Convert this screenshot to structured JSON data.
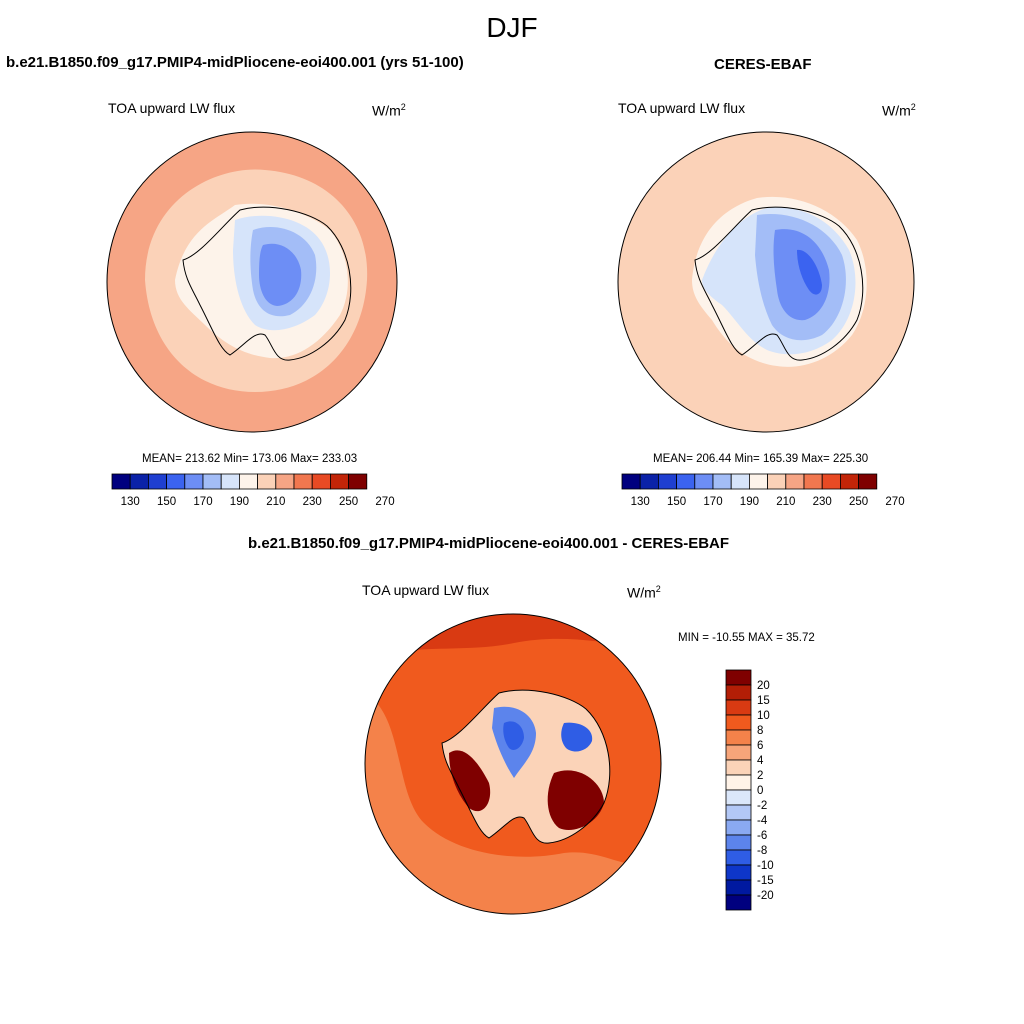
{
  "figure": {
    "season": "DJF",
    "model_title": "b.e21.B1850.f09_g17.PMIP4-midPliocene-eoi400.001 (yrs 51-100)",
    "obs_title": "CERES-EBAF",
    "diff_title": "b.e21.B1850.f09_g17.PMIP4-midPliocene-eoi400.001 - CERES-EBAF"
  },
  "panels": {
    "model": {
      "variable": "TOA upward LW flux",
      "units_base": "W/m",
      "units_exp": "2",
      "stats": "MEAN= 213.62  Min= 173.06  Max= 233.03"
    },
    "obs": {
      "variable": "TOA upward LW flux",
      "units_base": "W/m",
      "units_exp": "2",
      "stats": "MEAN= 206.44  Min= 165.39  Max= 225.30"
    },
    "diff": {
      "variable": "TOA upward LW flux",
      "units_base": "W/m",
      "units_exp": "2",
      "stats": "MIN = -10.55 MAX =  35.72"
    }
  },
  "colorbars": {
    "abs_colors": [
      "#00007f",
      "#0b22a8",
      "#1f3fd1",
      "#3b63f0",
      "#6d8ef5",
      "#a3bdf7",
      "#d6e4fa",
      "#fdf3ea",
      "#fbd2b8",
      "#f6a585",
      "#f1774f",
      "#e84a24",
      "#c22508",
      "#7f0000"
    ],
    "abs_labels": [
      "130",
      "150",
      "170",
      "190",
      "210",
      "230",
      "250",
      "270"
    ],
    "diff_colors": [
      "#7f0000",
      "#b31e06",
      "#d93a12",
      "#f05a1e",
      "#f4824a",
      "#f7a57a",
      "#fbd3b8",
      "#fff3e8",
      "#dbe7fa",
      "#b3c8f6",
      "#8aa9f2",
      "#5c84ec",
      "#2f5de5",
      "#0e36c9",
      "#0019a0",
      "#00007f"
    ],
    "diff_labels": [
      "20",
      "15",
      "10",
      "8",
      "6",
      "4",
      "2",
      "0",
      "-2",
      "-4",
      "-6",
      "-8",
      "-10",
      "-15",
      "-20"
    ]
  }
}
